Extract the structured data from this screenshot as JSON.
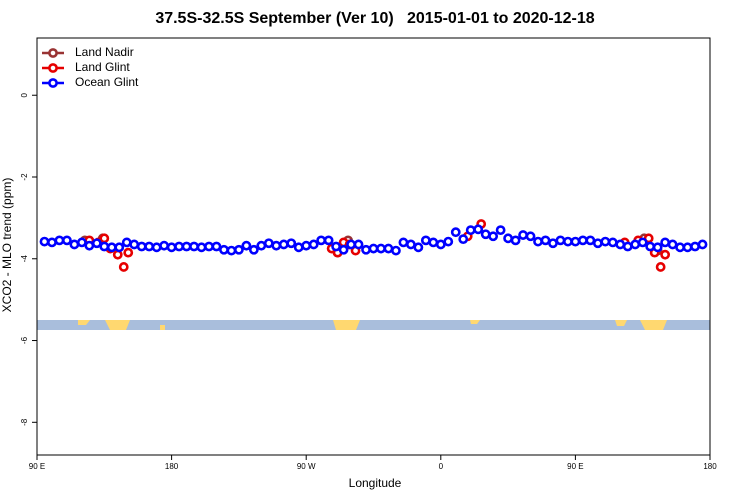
{
  "chart_data": {
    "type": "scatter",
    "title": "37.5S-32.5S September (Ver 10)   2015-01-01 to 2020-12-18",
    "x_label": "Longitude",
    "y_label": "XCO2 - MLO trend (ppm)",
    "xlim": [
      90,
      540
    ],
    "ylim": [
      -8.8,
      1.4
    ],
    "xticks": [
      {
        "value": 90,
        "label": "90 E"
      },
      180,
      {
        "value": 270,
        "label": "90 W"
      },
      {
        "value": 360,
        "label": "0"
      },
      {
        "value": 450,
        "label": "90 E"
      },
      {
        "value": 540,
        "label": "180"
      }
    ],
    "yticks": [
      0,
      -2,
      -4,
      -6,
      -8
    ],
    "legend": "top-left",
    "series": [
      {
        "name": "Land Nadir",
        "color": "#993333",
        "x": [
          122,
          134,
          291,
          298,
          496,
          505
        ],
        "values": [
          -3.55,
          -3.5,
          -3.85,
          -3.55,
          -3.5,
          -3.8
        ]
      },
      {
        "name": "Land Glint",
        "color": "#e60000",
        "x": [
          125,
          131,
          135,
          139,
          144,
          148,
          151,
          287,
          291,
          295,
          299,
          303,
          378,
          387,
          483,
          492,
          499,
          503,
          507,
          510
        ],
        "values": [
          -3.55,
          -3.6,
          -3.5,
          -3.75,
          -3.9,
          -4.2,
          -3.85,
          -3.75,
          -3.85,
          -3.6,
          -3.65,
          -3.8,
          -3.45,
          -3.15,
          -3.6,
          -3.55,
          -3.5,
          -3.85,
          -4.2,
          -3.9
        ]
      },
      {
        "name": "Ocean Glint",
        "color": "#0000ff",
        "x": [
          95,
          100,
          105,
          110,
          115,
          120,
          125,
          130,
          135,
          140,
          145,
          150,
          155,
          160,
          165,
          170,
          175,
          180,
          185,
          190,
          195,
          200,
          205,
          210,
          215,
          220,
          225,
          230,
          235,
          240,
          245,
          250,
          255,
          260,
          265,
          270,
          275,
          280,
          285,
          290,
          295,
          300,
          305,
          310,
          315,
          320,
          325,
          330,
          335,
          340,
          345,
          350,
          355,
          360,
          365,
          370,
          375,
          380,
          385,
          390,
          395,
          400,
          405,
          410,
          415,
          420,
          425,
          430,
          435,
          440,
          445,
          450,
          455,
          460,
          465,
          470,
          475,
          480,
          485,
          490,
          495,
          500,
          505,
          510,
          515,
          520,
          525,
          530,
          535
        ],
        "values": [
          -3.58,
          -3.6,
          -3.55,
          -3.55,
          -3.65,
          -3.6,
          -3.68,
          -3.62,
          -3.7,
          -3.72,
          -3.72,
          -3.6,
          -3.65,
          -3.7,
          -3.7,
          -3.72,
          -3.68,
          -3.72,
          -3.7,
          -3.7,
          -3.7,
          -3.72,
          -3.7,
          -3.7,
          -3.78,
          -3.8,
          -3.78,
          -3.68,
          -3.78,
          -3.68,
          -3.62,
          -3.68,
          -3.65,
          -3.62,
          -3.72,
          -3.68,
          -3.65,
          -3.55,
          -3.55,
          -3.7,
          -3.78,
          -3.65,
          -3.65,
          -3.78,
          -3.75,
          -3.75,
          -3.75,
          -3.8,
          -3.6,
          -3.65,
          -3.72,
          -3.55,
          -3.6,
          -3.65,
          -3.58,
          -3.35,
          -3.52,
          -3.3,
          -3.28,
          -3.4,
          -3.45,
          -3.3,
          -3.5,
          -3.55,
          -3.42,
          -3.45,
          -3.58,
          -3.55,
          -3.62,
          -3.55,
          -3.58,
          -3.58,
          -3.55,
          -3.55,
          -3.62,
          -3.58,
          -3.6,
          -3.65,
          -3.7,
          -3.65,
          -3.6,
          -3.7,
          -3.72,
          -3.6,
          -3.65,
          -3.72,
          -3.72,
          -3.7,
          -3.65
        ]
      }
    ]
  }
}
